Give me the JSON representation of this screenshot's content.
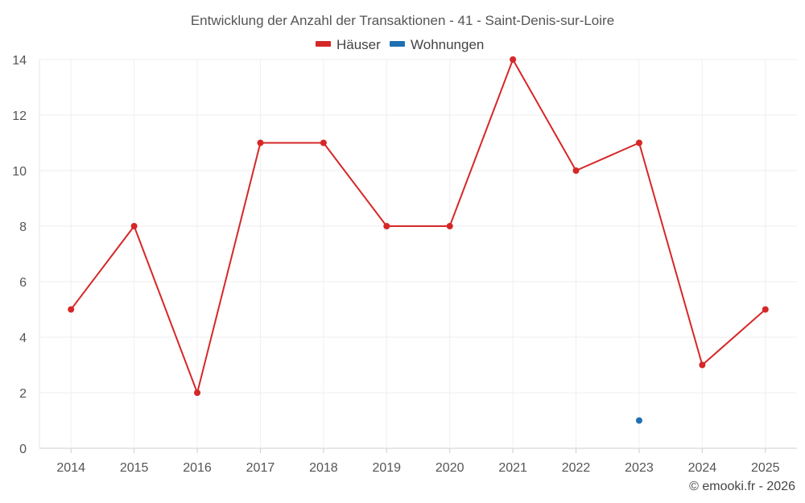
{
  "chart_data": {
    "type": "line",
    "title": "Entwicklung der Anzahl der Transaktionen - 41 - Saint-Denis-sur-Loire",
    "categories": [
      "2014",
      "2015",
      "2016",
      "2017",
      "2018",
      "2019",
      "2020",
      "2021",
      "2022",
      "2023",
      "2024",
      "2025"
    ],
    "series": [
      {
        "name": "Häuser",
        "color": "#d62728",
        "values": [
          5,
          8,
          2,
          11,
          11,
          8,
          8,
          14,
          10,
          11,
          3,
          5
        ]
      },
      {
        "name": "Wohnungen",
        "color": "#1f6fb2",
        "values": [
          null,
          null,
          null,
          null,
          null,
          null,
          null,
          null,
          null,
          1,
          null,
          null
        ]
      }
    ],
    "ylim": [
      0,
      14
    ],
    "yticks": [
      0,
      2,
      4,
      6,
      8,
      10,
      12,
      14
    ],
    "grid": true,
    "legend_position": "top-center",
    "credit": "© emooki.fr - 2026"
  }
}
